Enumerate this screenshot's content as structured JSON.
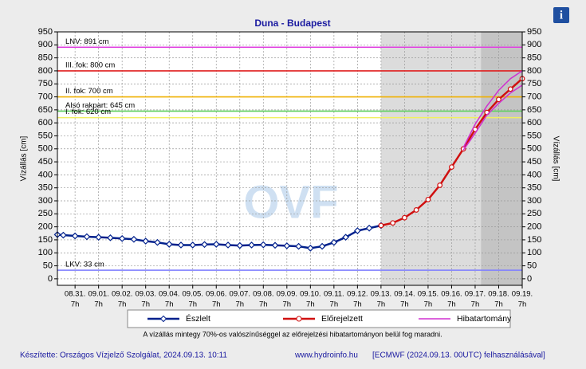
{
  "chart_data": {
    "type": "line",
    "title": "Duna - Budapest",
    "ylabel": "Vízállás [cm]",
    "y2label": "Vízállás [cm]",
    "ylim": [
      -25,
      950
    ],
    "yticks": [
      0,
      50,
      100,
      150,
      200,
      250,
      300,
      350,
      400,
      450,
      500,
      550,
      600,
      650,
      700,
      750,
      800,
      850,
      900,
      950
    ],
    "y2lim": [
      -25,
      950
    ],
    "y2ticks": [
      0,
      50,
      100,
      150,
      200,
      250,
      300,
      350,
      400,
      450,
      500,
      550,
      600,
      650,
      700,
      750,
      800,
      850,
      900,
      950
    ],
    "xlim": [
      -0.75,
      19
    ],
    "xticks": [
      {
        "value": 0,
        "label": "08.31."
      },
      {
        "value": 1,
        "label": "09.01."
      },
      {
        "value": 2,
        "label": "09.02."
      },
      {
        "value": 3,
        "label": "09.03."
      },
      {
        "value": 4,
        "label": "09.04."
      },
      {
        "value": 5,
        "label": "09.05."
      },
      {
        "value": 6,
        "label": "09.06."
      },
      {
        "value": 7,
        "label": "09.07."
      },
      {
        "value": 8,
        "label": "09.08."
      },
      {
        "value": 9,
        "label": "09.09."
      },
      {
        "value": 10,
        "label": "09.10."
      },
      {
        "value": 11,
        "label": "09.11."
      },
      {
        "value": 12,
        "label": "09.12."
      },
      {
        "value": 13,
        "label": "09.13."
      },
      {
        "value": 14,
        "label": "09.14."
      },
      {
        "value": 15,
        "label": "09.15."
      },
      {
        "value": 16,
        "label": "09.16."
      },
      {
        "value": 17,
        "label": "09.17."
      },
      {
        "value": 18,
        "label": "09.18."
      },
      {
        "value": 19,
        "label": "09.19."
      }
    ],
    "xtick_hour_labels": [
      "7h",
      "7h",
      "7h",
      "7h",
      "7h",
      "7h",
      "7h",
      "7h",
      "7h",
      "7h",
      "7h",
      "7h",
      "7h",
      "7h",
      "7h",
      "7h",
      "7h",
      "7h",
      "7h",
      "7h"
    ],
    "grid": true,
    "shaded_regions": [
      {
        "from": 13,
        "to": 19,
        "color": "#dcdcdc"
      },
      {
        "from": 17.25,
        "to": 19,
        "color": "#c4c4c4"
      }
    ],
    "reference_lines": [
      {
        "label": "LNV: 891 cm",
        "value": 891,
        "color": "#e040e0"
      },
      {
        "label": "III. fok: 800 cm",
        "value": 800,
        "color": "#e02020"
      },
      {
        "label": "II. fok: 700 cm",
        "value": 700,
        "color": "#f0b000"
      },
      {
        "label": "Alsó rakpart: 645 cm",
        "value": 645,
        "color": "#60d060"
      },
      {
        "label": "I. fok: 620 cm",
        "value": 620,
        "color": "#f0f060"
      },
      {
        "label": "LKV: 33 cm",
        "value": 33,
        "color": "#8080ff"
      }
    ],
    "series": [
      {
        "name": "Észlelt",
        "color": "#00208c",
        "x": [
          -0.75,
          -0.5,
          0,
          0.5,
          1,
          1.5,
          2,
          2.5,
          3,
          3.5,
          4,
          4.5,
          5,
          5.5,
          6,
          6.5,
          7,
          7.5,
          8,
          8.5,
          9,
          9.5,
          10,
          10.5,
          11,
          11.5,
          12,
          12.5,
          13
        ],
        "values": [
          170,
          168,
          165,
          162,
          160,
          158,
          155,
          152,
          145,
          140,
          133,
          130,
          130,
          132,
          133,
          130,
          128,
          130,
          131,
          129,
          127,
          125,
          118,
          125,
          140,
          160,
          185,
          195,
          205
        ]
      },
      {
        "name": "Előrejelzett",
        "color": "#d01010",
        "x": [
          13,
          13.5,
          14,
          14.5,
          15,
          15.5,
          16,
          16.5,
          17,
          17.5,
          18,
          18.5,
          19
        ],
        "values": [
          205,
          215,
          235,
          265,
          305,
          360,
          430,
          500,
          575,
          640,
          690,
          730,
          770
        ]
      },
      {
        "name": "Hibatartomány",
        "color": "#d030d0",
        "x": [
          16.5,
          17,
          17.5,
          18,
          18.5,
          19
        ],
        "values": [
          505,
          595,
          665,
          725,
          770,
          800
        ],
        "lower": [
          495,
          560,
          630,
          675,
          715,
          745
        ]
      }
    ],
    "note": "A vízállás mintegy 70%-os valószínűséggel az előrejelzési hibatartományon belül fog maradni.",
    "watermark": "OVF",
    "info_icon": "i",
    "footer": [
      "Készítette: Országos Vízjelző Szolgálat, 2024.09.13. 10:11",
      "www.hydroinfo.hu",
      "[ECMWF (2024.09.13. 00UTC) felhasználásával]"
    ]
  }
}
